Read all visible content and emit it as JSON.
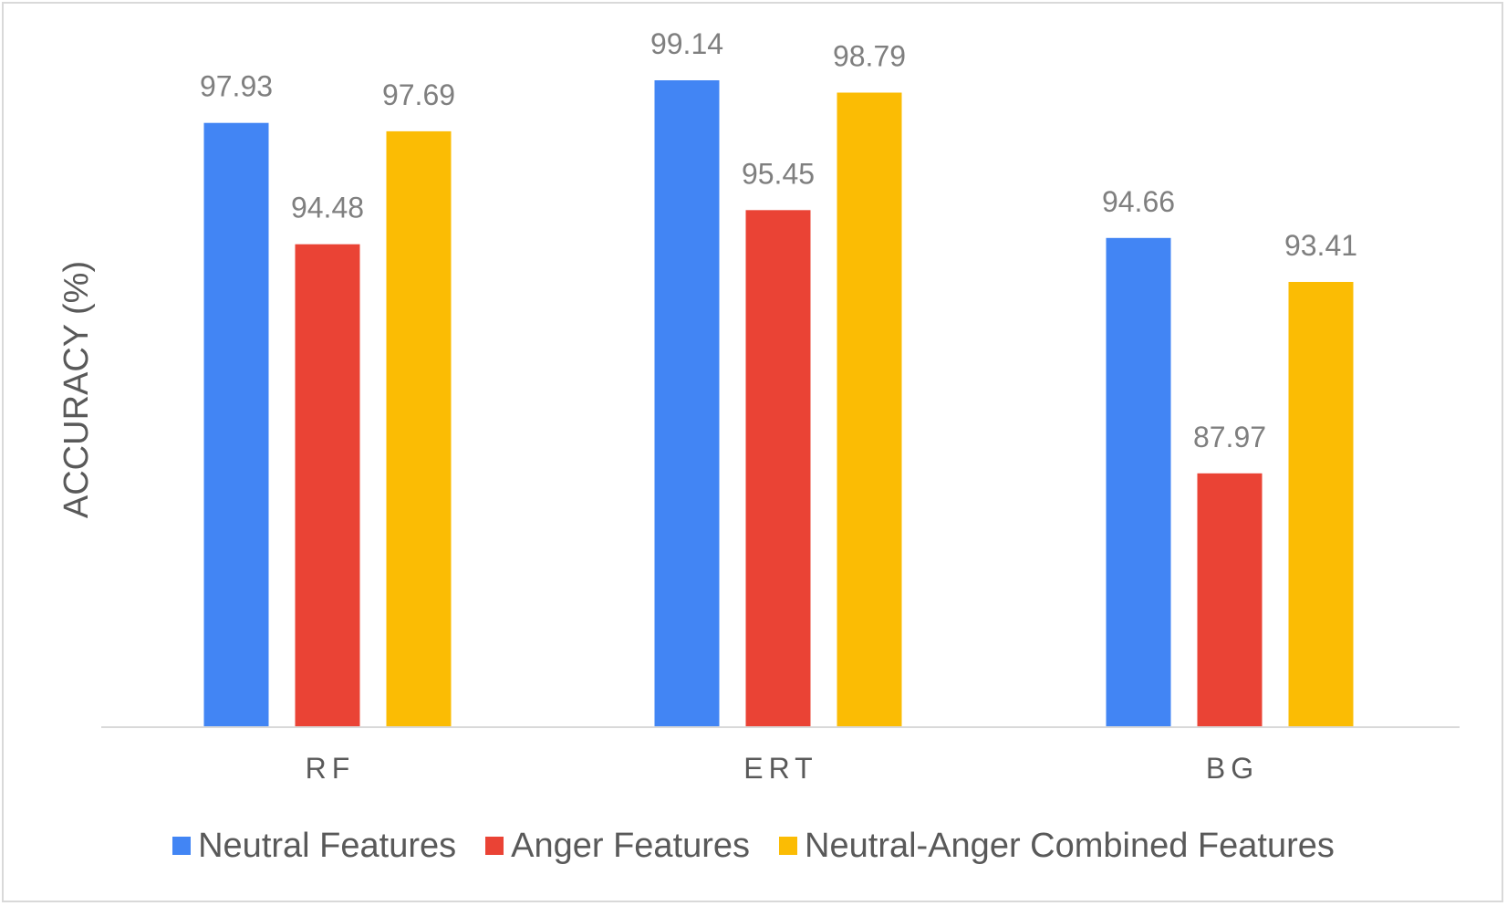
{
  "chart_data": {
    "type": "bar",
    "title": "",
    "xlabel": "",
    "ylabel": "ACCURACY (%)",
    "categories": [
      "RF",
      "ERT",
      "BG"
    ],
    "series": [
      {
        "name": "Neutral Features",
        "color": "#4285f4",
        "values": [
          97.93,
          99.14,
          94.66
        ]
      },
      {
        "name": "Anger Features",
        "color": "#ea4335",
        "values": [
          94.48,
          95.45,
          87.97
        ]
      },
      {
        "name": "Neutral-Anger Combined Features",
        "color": "#fbbc04",
        "values": [
          97.69,
          98.79,
          93.41
        ]
      }
    ],
    "value_labels": [
      [
        "97.93",
        "99.14",
        "94.66"
      ],
      [
        "94.48",
        "95.45",
        "87.97"
      ],
      [
        "97.69",
        "98.79",
        "93.41"
      ]
    ],
    "ylim": [
      80,
      100
    ],
    "grid": false,
    "legend_position": "bottom"
  }
}
